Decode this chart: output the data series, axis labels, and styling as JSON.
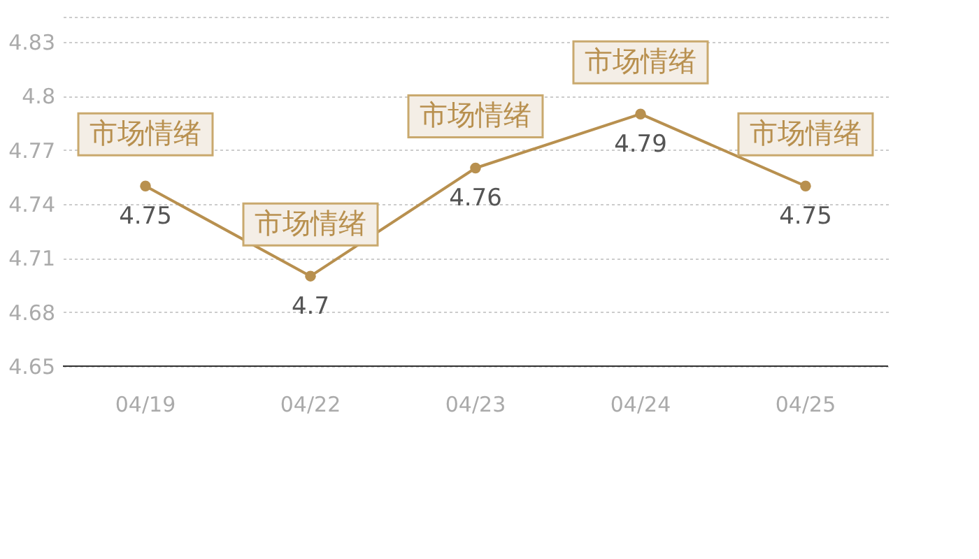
{
  "chart_data": {
    "type": "line",
    "categories": [
      "04/19",
      "04/22",
      "04/23",
      "04/24",
      "04/25"
    ],
    "series": [
      {
        "color": "#b8904f",
        "values": [
          4.75,
          4.7,
          4.76,
          4.79,
          4.75
        ]
      }
    ],
    "ylim": [
      4.65,
      4.844
    ],
    "yticks": [
      4.65,
      4.68,
      4.71,
      4.74,
      4.77,
      4.8,
      4.83,
      {
        "value": 4.844,
        "label": null
      }
    ],
    "grid": "y",
    "marker": "circle",
    "line_style": "solid",
    "data_labels": true,
    "annotations": [
      {
        "text": "市场情绪",
        "x": "04/19",
        "y": 4.75
      },
      {
        "text": "市场情绪",
        "x": "04/22",
        "y": 4.7
      },
      {
        "text": "市场情绪",
        "x": "04/23",
        "y": 4.76
      },
      {
        "text": "市场情绪",
        "x": "04/24",
        "y": 4.79
      },
      {
        "text": "市场情绪",
        "x": "04/25",
        "y": 4.75
      }
    ]
  }
}
